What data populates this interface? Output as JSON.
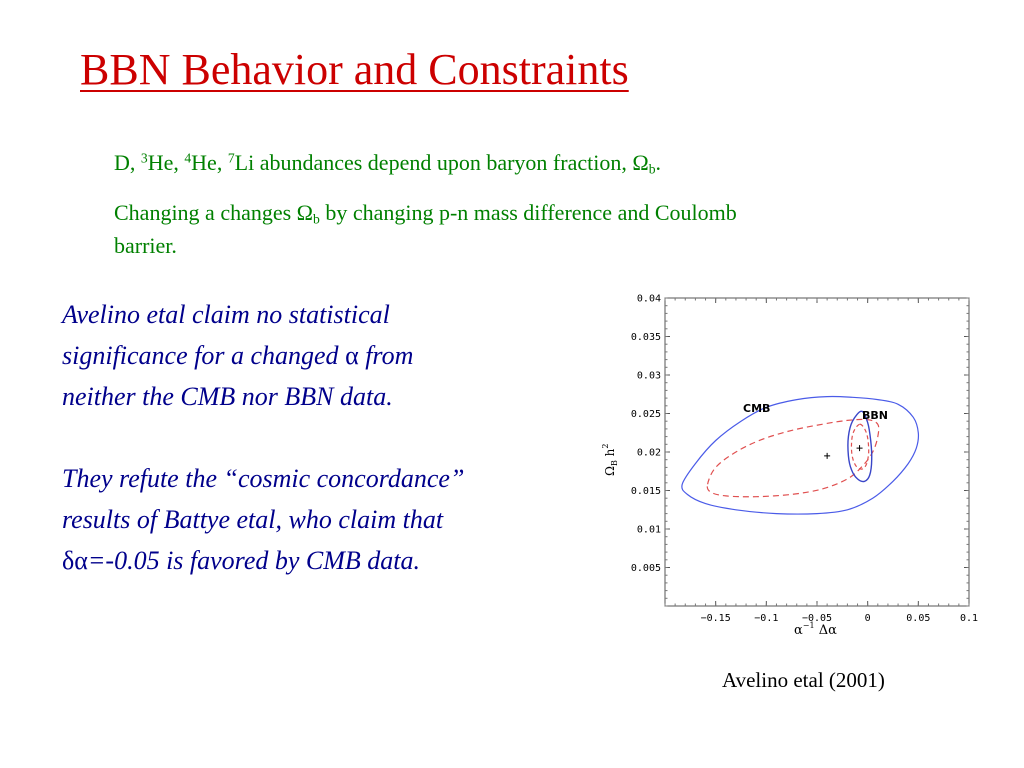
{
  "slide": {
    "title": "BBN Behavior and Constraints",
    "bullet1": {
      "p1": "D, ",
      "sup1": "3",
      "p2": "He, ",
      "sup2": "4",
      "p3": "He, ",
      "sup3": "7",
      "p4": "Li abundances depend upon baryon fraction, ",
      "omega": "Ω",
      "sub": "b",
      "end": "."
    },
    "bullet2": {
      "p1": "Changing a changes ",
      "omega": "Ω",
      "sub": "b",
      "p2": " by changing p-n mass difference and Coulomb",
      "line2": "barrier."
    },
    "claim": {
      "l1": "Avelino etal claim no statistical",
      "l2a": "significance for a changed ",
      "alpha": "α",
      "l2b": " from",
      "l3": "neither the CMB nor BBN data."
    },
    "refute": {
      "l1": "They refute the “cosmic concordance”",
      "l2": "results of Battye etal, who claim that",
      "l3sym": "δα",
      "l3": "=-0.05 is favored by CMB data."
    },
    "caption": "Avelino etal (2001)"
  },
  "chart_data": {
    "type": "scatter",
    "xlim": [
      -0.2,
      0.1
    ],
    "ylim": [
      0,
      0.04
    ],
    "x_ticks": [
      "−0.15",
      "−0.1",
      "−0.05",
      "0",
      "0.05",
      "0.1"
    ],
    "y_ticks": [
      "0.005",
      "0.01",
      "0.015",
      "0.02",
      "0.025",
      "0.03",
      "0.035",
      "0.04"
    ],
    "xlabel": {
      "a": "α",
      "sup": "−1",
      "b": " Δα"
    },
    "ylabel": {
      "a": "Ω",
      "sub": "B",
      "b": " h",
      "sup": "2"
    },
    "grid": false,
    "annotations": {
      "cmb": "CMB",
      "bbn": "BBN"
    },
    "colors": {
      "cmb_solid": "#4a5be8",
      "cmb_dashed": "#e05050",
      "bbn_solid": "#3a46c8",
      "bbn_dashed": "#e05050",
      "axes": "#555555"
    },
    "markers": [
      {
        "x": -0.04,
        "y": 0.0195
      },
      {
        "x": -0.008,
        "y": 0.0205
      }
    ],
    "contours": {
      "cmb_outer": [
        [
          -0.183,
          0.0158
        ],
        [
          -0.17,
          0.0185
        ],
        [
          -0.15,
          0.0215
        ],
        [
          -0.125,
          0.024
        ],
        [
          -0.1,
          0.0258
        ],
        [
          -0.07,
          0.0268
        ],
        [
          -0.04,
          0.0272
        ],
        [
          -0.015,
          0.0271
        ],
        [
          0.01,
          0.0268
        ],
        [
          0.03,
          0.0262
        ],
        [
          0.045,
          0.0245
        ],
        [
          0.05,
          0.0225
        ],
        [
          0.048,
          0.0205
        ],
        [
          0.04,
          0.0185
        ],
        [
          0.025,
          0.0162
        ],
        [
          0.005,
          0.014
        ],
        [
          -0.02,
          0.0125
        ],
        [
          -0.05,
          0.012
        ],
        [
          -0.09,
          0.012
        ],
        [
          -0.13,
          0.0125
        ],
        [
          -0.16,
          0.0133
        ],
        [
          -0.178,
          0.0145
        ]
      ],
      "cmb_inner": [
        [
          -0.158,
          0.0158
        ],
        [
          -0.15,
          0.018
        ],
        [
          -0.13,
          0.02
        ],
        [
          -0.105,
          0.0216
        ],
        [
          -0.075,
          0.0228
        ],
        [
          -0.045,
          0.0236
        ],
        [
          -0.02,
          0.0241
        ],
        [
          0,
          0.0242
        ],
        [
          0.01,
          0.0236
        ],
        [
          0.01,
          0.022
        ],
        [
          0.005,
          0.02
        ],
        [
          -0.005,
          0.0182
        ],
        [
          -0.02,
          0.0165
        ],
        [
          -0.045,
          0.0152
        ],
        [
          -0.075,
          0.0145
        ],
        [
          -0.11,
          0.0142
        ],
        [
          -0.14,
          0.0143
        ],
        [
          -0.155,
          0.0148
        ]
      ],
      "bbn_solid": [
        [
          -0.006,
          0.0253
        ],
        [
          -0.015,
          0.024
        ],
        [
          -0.019,
          0.022
        ],
        [
          -0.019,
          0.0195
        ],
        [
          -0.016,
          0.0177
        ],
        [
          -0.01,
          0.0165
        ],
        [
          -0.003,
          0.0162
        ],
        [
          0.002,
          0.017
        ],
        [
          0.004,
          0.019
        ],
        [
          0.003,
          0.0215
        ],
        [
          0,
          0.0238
        ]
      ],
      "bbn_dashed": [
        [
          -0.008,
          0.0236
        ],
        [
          -0.014,
          0.0226
        ],
        [
          -0.016,
          0.021
        ],
        [
          -0.015,
          0.0193
        ],
        [
          -0.011,
          0.0181
        ],
        [
          -0.005,
          0.0178
        ],
        [
          -0.001,
          0.0185
        ],
        [
          0.001,
          0.02
        ],
        [
          0,
          0.0218
        ],
        [
          -0.003,
          0.023
        ]
      ]
    }
  }
}
